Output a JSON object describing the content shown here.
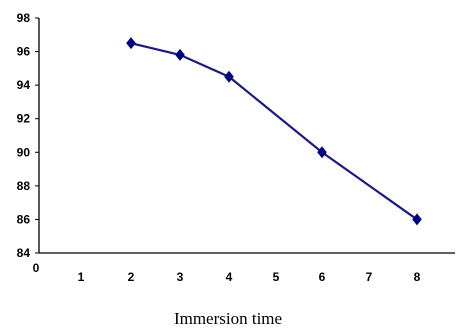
{
  "chart_data": {
    "type": "line",
    "title": "",
    "xlabel": "Immersion time",
    "ylabel": "",
    "ylim": [
      84,
      98
    ],
    "yticks": [
      84,
      86,
      88,
      90,
      92,
      94,
      96,
      98
    ],
    "x_tick_labels": [
      "0",
      "1",
      "2",
      "3",
      "4",
      "5",
      "6",
      "7",
      "8"
    ],
    "categories": [
      "2",
      "3",
      "4",
      "6",
      "8"
    ],
    "values": [
      96.5,
      95.8,
      94.5,
      90.0,
      86.0
    ],
    "grid": false,
    "legend": "none",
    "line_color": "#1a1a80",
    "marker_color": "#000080",
    "marker": "diamond"
  }
}
